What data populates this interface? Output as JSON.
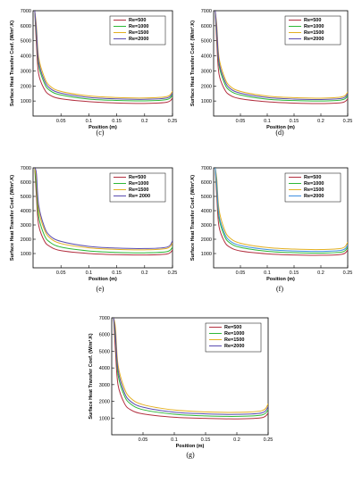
{
  "chart_data": [
    {
      "type": "line",
      "caption": "(c)",
      "xlabel": "Position (m)",
      "ylabel": "Surface Heat Transfer Coef. (W/m².K)",
      "xlim": [
        0,
        0.25
      ],
      "ylim": [
        0,
        7000
      ],
      "xticks": [
        "0.05",
        "0.1",
        "0.15",
        "0.2",
        "0.25"
      ],
      "yticks": [
        "1000",
        "2000",
        "3000",
        "4000",
        "5000",
        "6000",
        "7000"
      ],
      "legend_position": "top-right",
      "grid": false,
      "series": [
        {
          "name": "Re=500",
          "color": "#b33040",
          "x": [
            0.003,
            0.006,
            0.01,
            0.02,
            0.03,
            0.05,
            0.1,
            0.15,
            0.2,
            0.24,
            0.25
          ],
          "y": [
            7000,
            4800,
            2800,
            1800,
            1400,
            1150,
            960,
            870,
            840,
            920,
            1200
          ]
        },
        {
          "name": "Re=1000",
          "color": "#2eb838",
          "x": [
            0.003,
            0.006,
            0.01,
            0.02,
            0.03,
            0.05,
            0.1,
            0.15,
            0.2,
            0.24,
            0.25
          ],
          "y": [
            7000,
            5400,
            3400,
            2200,
            1700,
            1400,
            1130,
            1040,
            1010,
            1100,
            1400
          ]
        },
        {
          "name": "Re=1500",
          "color": "#e3b022",
          "x": [
            0.003,
            0.006,
            0.01,
            0.02,
            0.03,
            0.05,
            0.1,
            0.15,
            0.2,
            0.24,
            0.25
          ],
          "y": [
            7000,
            6000,
            3900,
            2600,
            2000,
            1640,
            1340,
            1230,
            1200,
            1300,
            1650
          ]
        },
        {
          "name": "Re=2000",
          "color": "#5a4cb0",
          "x": [
            0.003,
            0.006,
            0.01,
            0.02,
            0.03,
            0.05,
            0.1,
            0.15,
            0.2,
            0.24,
            0.25
          ],
          "y": [
            7000,
            5700,
            3600,
            2400,
            1850,
            1520,
            1240,
            1140,
            1110,
            1200,
            1520
          ]
        }
      ]
    },
    {
      "type": "line",
      "caption": "(d)",
      "xlabel": "Position (m)",
      "ylabel": "Surface Heat Transfer Coef. (W/m².K)",
      "xlim": [
        0,
        0.25
      ],
      "ylim": [
        0,
        7000
      ],
      "xticks": [
        "0.05",
        "0.1",
        "0.15",
        "0.2",
        "0.25"
      ],
      "yticks": [
        "1000",
        "2000",
        "3000",
        "4000",
        "5000",
        "6000",
        "7000"
      ],
      "legend_position": "top-right",
      "grid": false,
      "series": [
        {
          "name": "Re=500",
          "color": "#b33040",
          "x": [
            0.003,
            0.006,
            0.01,
            0.02,
            0.03,
            0.05,
            0.1,
            0.15,
            0.2,
            0.24,
            0.25
          ],
          "y": [
            7000,
            4800,
            2800,
            1800,
            1400,
            1150,
            950,
            860,
            830,
            900,
            1150
          ]
        },
        {
          "name": "Re=1000",
          "color": "#2eb838",
          "x": [
            0.003,
            0.006,
            0.01,
            0.02,
            0.03,
            0.05,
            0.1,
            0.15,
            0.2,
            0.24,
            0.25
          ],
          "y": [
            7000,
            5400,
            3400,
            2200,
            1700,
            1400,
            1120,
            1030,
            1000,
            1080,
            1350
          ]
        },
        {
          "name": "Re=1500",
          "color": "#e3b022",
          "x": [
            0.003,
            0.006,
            0.01,
            0.02,
            0.03,
            0.05,
            0.1,
            0.15,
            0.2,
            0.24,
            0.25
          ],
          "y": [
            7000,
            6000,
            3900,
            2600,
            2000,
            1640,
            1330,
            1220,
            1190,
            1280,
            1600
          ]
        },
        {
          "name": "Re=2000",
          "color": "#5a4cb0",
          "x": [
            0.003,
            0.006,
            0.01,
            0.02,
            0.03,
            0.05,
            0.1,
            0.15,
            0.2,
            0.24,
            0.25
          ],
          "y": [
            7000,
            5700,
            3600,
            2400,
            1850,
            1520,
            1230,
            1130,
            1100,
            1180,
            1480
          ]
        }
      ]
    },
    {
      "type": "line",
      "caption": "(e)",
      "xlabel": "Position (m)",
      "ylabel": "Surface Heat Transfer Coef. (W/m².K)",
      "xlim": [
        0,
        0.25
      ],
      "ylim": [
        0,
        7000
      ],
      "xticks": [
        "0.05",
        "0.1",
        "0.15",
        "0.2",
        "0.25"
      ],
      "yticks": [
        "1000",
        "2000",
        "3000",
        "4000",
        "5000",
        "6000",
        "7000"
      ],
      "legend_position": "top-right",
      "grid": false,
      "series": [
        {
          "name": "Re=500",
          "color": "#b33040",
          "x": [
            0.003,
            0.006,
            0.01,
            0.02,
            0.03,
            0.05,
            0.1,
            0.15,
            0.2,
            0.24,
            0.25
          ],
          "y": [
            7000,
            5000,
            3000,
            1900,
            1500,
            1200,
            1000,
            920,
            900,
            970,
            1250
          ]
        },
        {
          "name": "Re=1000",
          "color": "#2eb838",
          "x": [
            0.003,
            0.006,
            0.01,
            0.02,
            0.03,
            0.05,
            0.1,
            0.15,
            0.2,
            0.24,
            0.25
          ],
          "y": [
            7000,
            5600,
            3600,
            2300,
            1800,
            1450,
            1180,
            1080,
            1050,
            1130,
            1450
          ]
        },
        {
          "name": "Re=1500",
          "color": "#e3b022",
          "x": [
            0.003,
            0.006,
            0.01,
            0.02,
            0.03,
            0.05,
            0.1,
            0.15,
            0.2,
            0.24,
            0.25
          ],
          "y": [
            7000,
            6200,
            4100,
            2700,
            2100,
            1700,
            1400,
            1290,
            1260,
            1360,
            1750
          ]
        },
        {
          "name": "Re= 2000",
          "color": "#5a4cb0",
          "x": [
            0.003,
            0.006,
            0.01,
            0.02,
            0.03,
            0.05,
            0.1,
            0.15,
            0.2,
            0.24,
            0.25
          ],
          "y": [
            7000,
            6600,
            4400,
            2900,
            2250,
            1850,
            1500,
            1380,
            1350,
            1450,
            1900
          ]
        }
      ]
    },
    {
      "type": "line",
      "caption": "(f)",
      "xlabel": "Position (m)",
      "ylabel": "Surface Heat Transfer Coef. (W/m².K)",
      "xlim": [
        0,
        0.25
      ],
      "ylim": [
        0,
        7000
      ],
      "xticks": [
        "0.05",
        "0.1",
        "0.15",
        "0.2",
        "0.25"
      ],
      "yticks": [
        "1000",
        "2000",
        "3000",
        "4000",
        "5000",
        "6000",
        "7000"
      ],
      "legend_position": "top-right",
      "grid": false,
      "series": [
        {
          "name": "Re=500",
          "color": "#b33040",
          "x": [
            0.003,
            0.006,
            0.01,
            0.02,
            0.03,
            0.05,
            0.1,
            0.15,
            0.2,
            0.24,
            0.25
          ],
          "y": [
            7000,
            4900,
            2900,
            1850,
            1450,
            1180,
            980,
            900,
            880,
            950,
            1250
          ]
        },
        {
          "name": "Re=1000",
          "color": "#2eb838",
          "x": [
            0.003,
            0.006,
            0.01,
            0.02,
            0.03,
            0.05,
            0.1,
            0.15,
            0.2,
            0.24,
            0.25
          ],
          "y": [
            7000,
            5500,
            3500,
            2250,
            1750,
            1430,
            1160,
            1060,
            1030,
            1110,
            1450
          ]
        },
        {
          "name": "Re=1500",
          "color": "#e3b022",
          "x": [
            0.003,
            0.006,
            0.01,
            0.02,
            0.03,
            0.05,
            0.1,
            0.15,
            0.2,
            0.24,
            0.25
          ],
          "y": [
            7000,
            6200,
            4100,
            2700,
            2100,
            1720,
            1420,
            1310,
            1280,
            1380,
            1800
          ]
        },
        {
          "name": "Re=2000",
          "color": "#3f8fe0",
          "x": [
            0.003,
            0.006,
            0.01,
            0.02,
            0.03,
            0.05,
            0.1,
            0.15,
            0.2,
            0.24,
            0.25
          ],
          "y": [
            7000,
            5800,
            3700,
            2450,
            1900,
            1560,
            1280,
            1180,
            1150,
            1240,
            1600
          ]
        }
      ]
    },
    {
      "type": "line",
      "caption": "(g)",
      "xlabel": "Position (m)",
      "ylabel": "Surface Heat Transfer Coef. (W/m².K)",
      "xlim": [
        0,
        0.25
      ],
      "ylim": [
        0,
        7000
      ],
      "xticks": [
        "0.05",
        "0.1",
        "0.15",
        "0.2",
        "0.25"
      ],
      "yticks": [
        "1000",
        "2000",
        "3000",
        "4000",
        "5000",
        "6000",
        "7000"
      ],
      "legend_position": "top-right",
      "grid": false,
      "series": [
        {
          "name": "Re=500",
          "color": "#b33040",
          "x": [
            0.003,
            0.006,
            0.01,
            0.02,
            0.03,
            0.05,
            0.1,
            0.15,
            0.2,
            0.24,
            0.25
          ],
          "y": [
            7000,
            5000,
            3000,
            1900,
            1500,
            1250,
            1050,
            980,
            950,
            1020,
            1300
          ]
        },
        {
          "name": "Re=1000",
          "color": "#2eb838",
          "x": [
            0.003,
            0.006,
            0.01,
            0.02,
            0.03,
            0.05,
            0.1,
            0.15,
            0.2,
            0.24,
            0.25
          ],
          "y": [
            7000,
            5700,
            3600,
            2350,
            1850,
            1500,
            1230,
            1130,
            1100,
            1180,
            1500
          ]
        },
        {
          "name": "Re=1500",
          "color": "#e3b022",
          "x": [
            0.003,
            0.006,
            0.01,
            0.02,
            0.03,
            0.05,
            0.1,
            0.15,
            0.2,
            0.24,
            0.25
          ],
          "y": [
            7000,
            6400,
            4200,
            2800,
            2200,
            1800,
            1480,
            1370,
            1340,
            1440,
            1850
          ]
        },
        {
          "name": "Re=2000",
          "color": "#5a4cb0",
          "x": [
            0.003,
            0.006,
            0.01,
            0.02,
            0.03,
            0.05,
            0.1,
            0.15,
            0.2,
            0.24,
            0.25
          ],
          "y": [
            7000,
            6000,
            3900,
            2550,
            2000,
            1650,
            1350,
            1250,
            1220,
            1310,
            1680
          ]
        }
      ]
    }
  ]
}
